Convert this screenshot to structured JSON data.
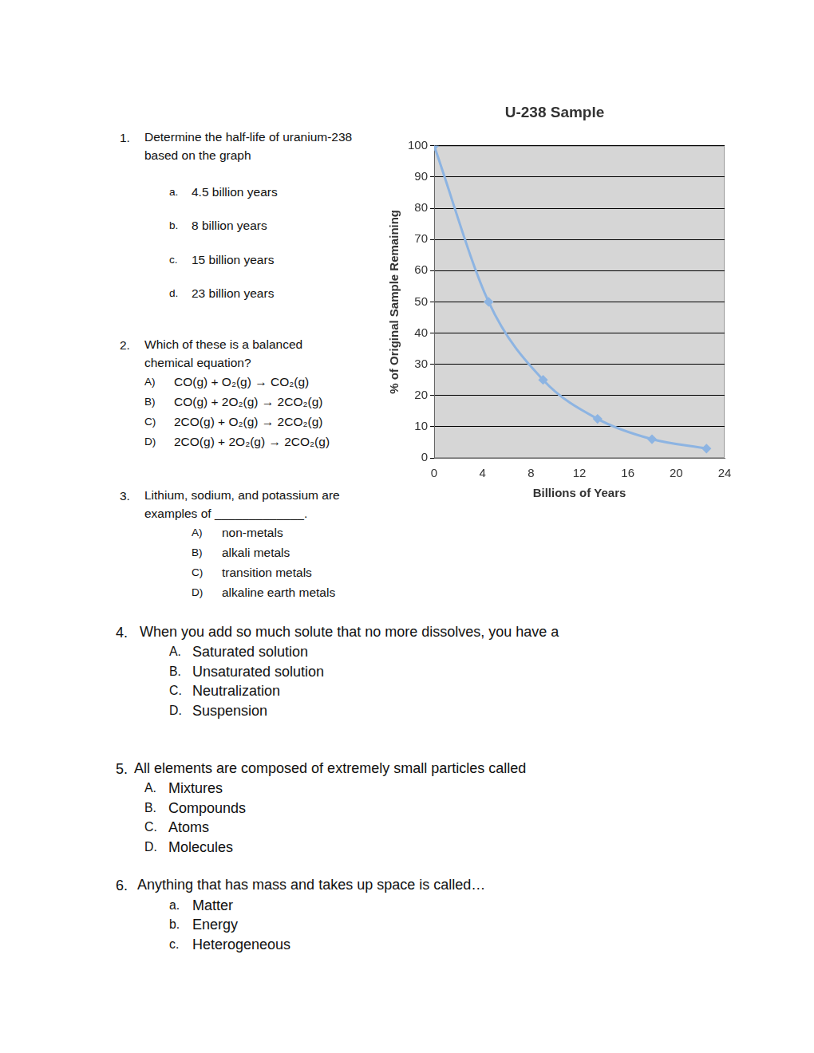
{
  "questions": [
    {
      "number": "1.",
      "text": "Determine the half-life of uranium-238 based on the graph",
      "options": [
        {
          "label": "a.",
          "text": "4.5 billion years"
        },
        {
          "label": "b.",
          "text": "8 billion years"
        },
        {
          "label": "c.",
          "text": "15 billion years"
        },
        {
          "label": "d.",
          "text": "23 billion years"
        }
      ]
    },
    {
      "number": "2.",
      "text": "Which of these is a balanced chemical equation?",
      "options": [
        {
          "label": "A)",
          "text": "CO(g) + O₂(g) → CO₂(g)"
        },
        {
          "label": "B)",
          "text": "CO(g) + 2O₂(g) → 2CO₂(g)"
        },
        {
          "label": "C)",
          "text": "2CO(g) + O₂(g) → 2CO₂(g)"
        },
        {
          "label": "D)",
          "text": " 2CO(g) + 2O₂(g) → 2CO₂(g)"
        }
      ]
    },
    {
      "number": "3.",
      "text": "Lithium, sodium, and potassium are examples of _____________.",
      "options": [
        {
          "label": "A)",
          "text": "non-metals"
        },
        {
          "label": "B)",
          "text": "alkali metals"
        },
        {
          "label": "C)",
          "text": "transition metals"
        },
        {
          "label": "D)",
          "text": "alkaline earth metals"
        }
      ]
    },
    {
      "number": "4.",
      "text": "When you add so much solute that no more dissolves, you have a",
      "options": [
        {
          "label": "A.",
          "text": "Saturated solution"
        },
        {
          "label": "B.",
          "text": "Unsaturated solution"
        },
        {
          "label": "C.",
          "text": "Neutralization"
        },
        {
          "label": "D.",
          "text": "Suspension"
        }
      ]
    },
    {
      "number": "5.",
      "text": "All elements are composed of extremely small particles called",
      "options": [
        {
          "label": "A.",
          "text": "Mixtures"
        },
        {
          "label": "B.",
          "text": "Compounds"
        },
        {
          "label": "C.",
          "text": "Atoms"
        },
        {
          "label": "D.",
          "text": "Molecules"
        }
      ]
    },
    {
      "number": "6.",
      "text": "Anything that has mass and takes up space is called…",
      "options": [
        {
          "label": "a.",
          "text": "Matter"
        },
        {
          "label": "b.",
          "text": "Energy"
        },
        {
          "label": "c.",
          "text": "Heterogeneous"
        }
      ]
    }
  ],
  "chart_data": {
    "type": "line",
    "title": "U-238 Sample",
    "x_label": "Billions of Years",
    "y_label": "% of Original Sample Remaining",
    "x": [
      0,
      4.5,
      9,
      13.5,
      18,
      22.5
    ],
    "values": [
      100,
      50,
      25,
      12.5,
      6,
      3
    ],
    "color": "#8db4e2",
    "marker": "diamond",
    "xlim": [
      0,
      24
    ],
    "xticks": [
      0,
      4,
      8,
      12,
      16,
      20,
      24
    ],
    "ylim": [
      0,
      100
    ],
    "yticks": [
      0,
      10,
      20,
      30,
      40,
      50,
      60,
      70,
      80,
      90,
      100
    ],
    "grid": true
  }
}
